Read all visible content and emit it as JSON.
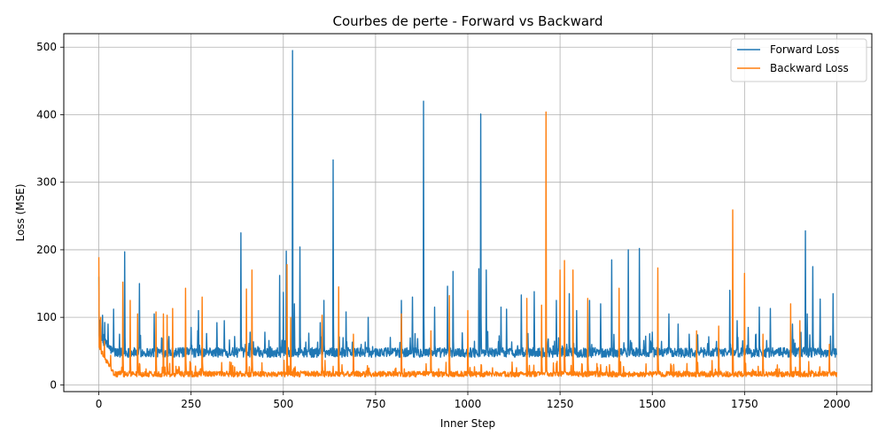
{
  "chart_data": {
    "type": "line",
    "title": "Courbes de perte - Forward vs Backward",
    "xlabel": "Inner Step",
    "ylabel": "Loss (MSE)",
    "xlim": [
      -95,
      2095
    ],
    "ylim": [
      -10,
      520
    ],
    "xticks": [
      0,
      250,
      500,
      750,
      1000,
      1250,
      1500,
      1750,
      2000
    ],
    "yticks": [
      0,
      100,
      200,
      300,
      400,
      500
    ],
    "grid": true,
    "legend_position": "top-right",
    "n_steps": 2000,
    "series": [
      {
        "name": "Forward Loss",
        "color": "#1f77b4",
        "baseline": 48,
        "noise": 12,
        "spikes": [
          [
            0,
            160
          ],
          [
            10,
            103
          ],
          [
            25,
            90
          ],
          [
            40,
            112
          ],
          [
            70,
            197
          ],
          [
            110,
            150
          ],
          [
            150,
            105
          ],
          [
            250,
            85
          ],
          [
            270,
            110
          ],
          [
            320,
            92
          ],
          [
            340,
            95
          ],
          [
            385,
            225
          ],
          [
            410,
            78
          ],
          [
            450,
            78
          ],
          [
            490,
            162
          ],
          [
            500,
            137
          ],
          [
            508,
            198
          ],
          [
            525,
            495
          ],
          [
            530,
            120
          ],
          [
            545,
            204
          ],
          [
            600,
            92
          ],
          [
            610,
            125
          ],
          [
            635,
            333
          ],
          [
            670,
            108
          ],
          [
            730,
            100
          ],
          [
            820,
            125
          ],
          [
            850,
            130
          ],
          [
            880,
            420
          ],
          [
            910,
            115
          ],
          [
            945,
            146
          ],
          [
            960,
            168
          ],
          [
            1030,
            172
          ],
          [
            1035,
            401
          ],
          [
            1050,
            170
          ],
          [
            1090,
            115
          ],
          [
            1105,
            112
          ],
          [
            1145,
            133
          ],
          [
            1180,
            138
          ],
          [
            1240,
            125
          ],
          [
            1275,
            135
          ],
          [
            1295,
            110
          ],
          [
            1330,
            125
          ],
          [
            1360,
            120
          ],
          [
            1390,
            185
          ],
          [
            1435,
            200
          ],
          [
            1465,
            202
          ],
          [
            1500,
            78
          ],
          [
            1545,
            105
          ],
          [
            1570,
            90
          ],
          [
            1600,
            75
          ],
          [
            1710,
            140
          ],
          [
            1730,
            95
          ],
          [
            1760,
            85
          ],
          [
            1790,
            115
          ],
          [
            1820,
            113
          ],
          [
            1880,
            90
          ],
          [
            1915,
            228
          ],
          [
            1920,
            105
          ],
          [
            1935,
            175
          ],
          [
            1955,
            127
          ],
          [
            1990,
            135
          ]
        ]
      },
      {
        "name": "Backward Loss",
        "color": "#ff7f0e",
        "baseline": 16,
        "noise": 7,
        "spikes": [
          [
            0,
            189
          ],
          [
            5,
            100
          ],
          [
            15,
            65
          ],
          [
            65,
            152
          ],
          [
            85,
            125
          ],
          [
            105,
            105
          ],
          [
            155,
            108
          ],
          [
            175,
            105
          ],
          [
            185,
            103
          ],
          [
            200,
            113
          ],
          [
            235,
            143
          ],
          [
            280,
            130
          ],
          [
            400,
            142
          ],
          [
            415,
            170
          ],
          [
            510,
            178
          ],
          [
            520,
            100
          ],
          [
            605,
            103
          ],
          [
            650,
            145
          ],
          [
            690,
            75
          ],
          [
            820,
            105
          ],
          [
            900,
            80
          ],
          [
            950,
            132
          ],
          [
            1000,
            110
          ],
          [
            1160,
            128
          ],
          [
            1200,
            118
          ],
          [
            1212,
            404
          ],
          [
            1250,
            170
          ],
          [
            1262,
            184
          ],
          [
            1285,
            170
          ],
          [
            1325,
            128
          ],
          [
            1410,
            143
          ],
          [
            1515,
            173
          ],
          [
            1620,
            80
          ],
          [
            1680,
            87
          ],
          [
            1718,
            259
          ],
          [
            1750,
            165
          ],
          [
            1800,
            75
          ],
          [
            1875,
            120
          ],
          [
            1900,
            95
          ],
          [
            1980,
            60
          ]
        ]
      }
    ]
  }
}
